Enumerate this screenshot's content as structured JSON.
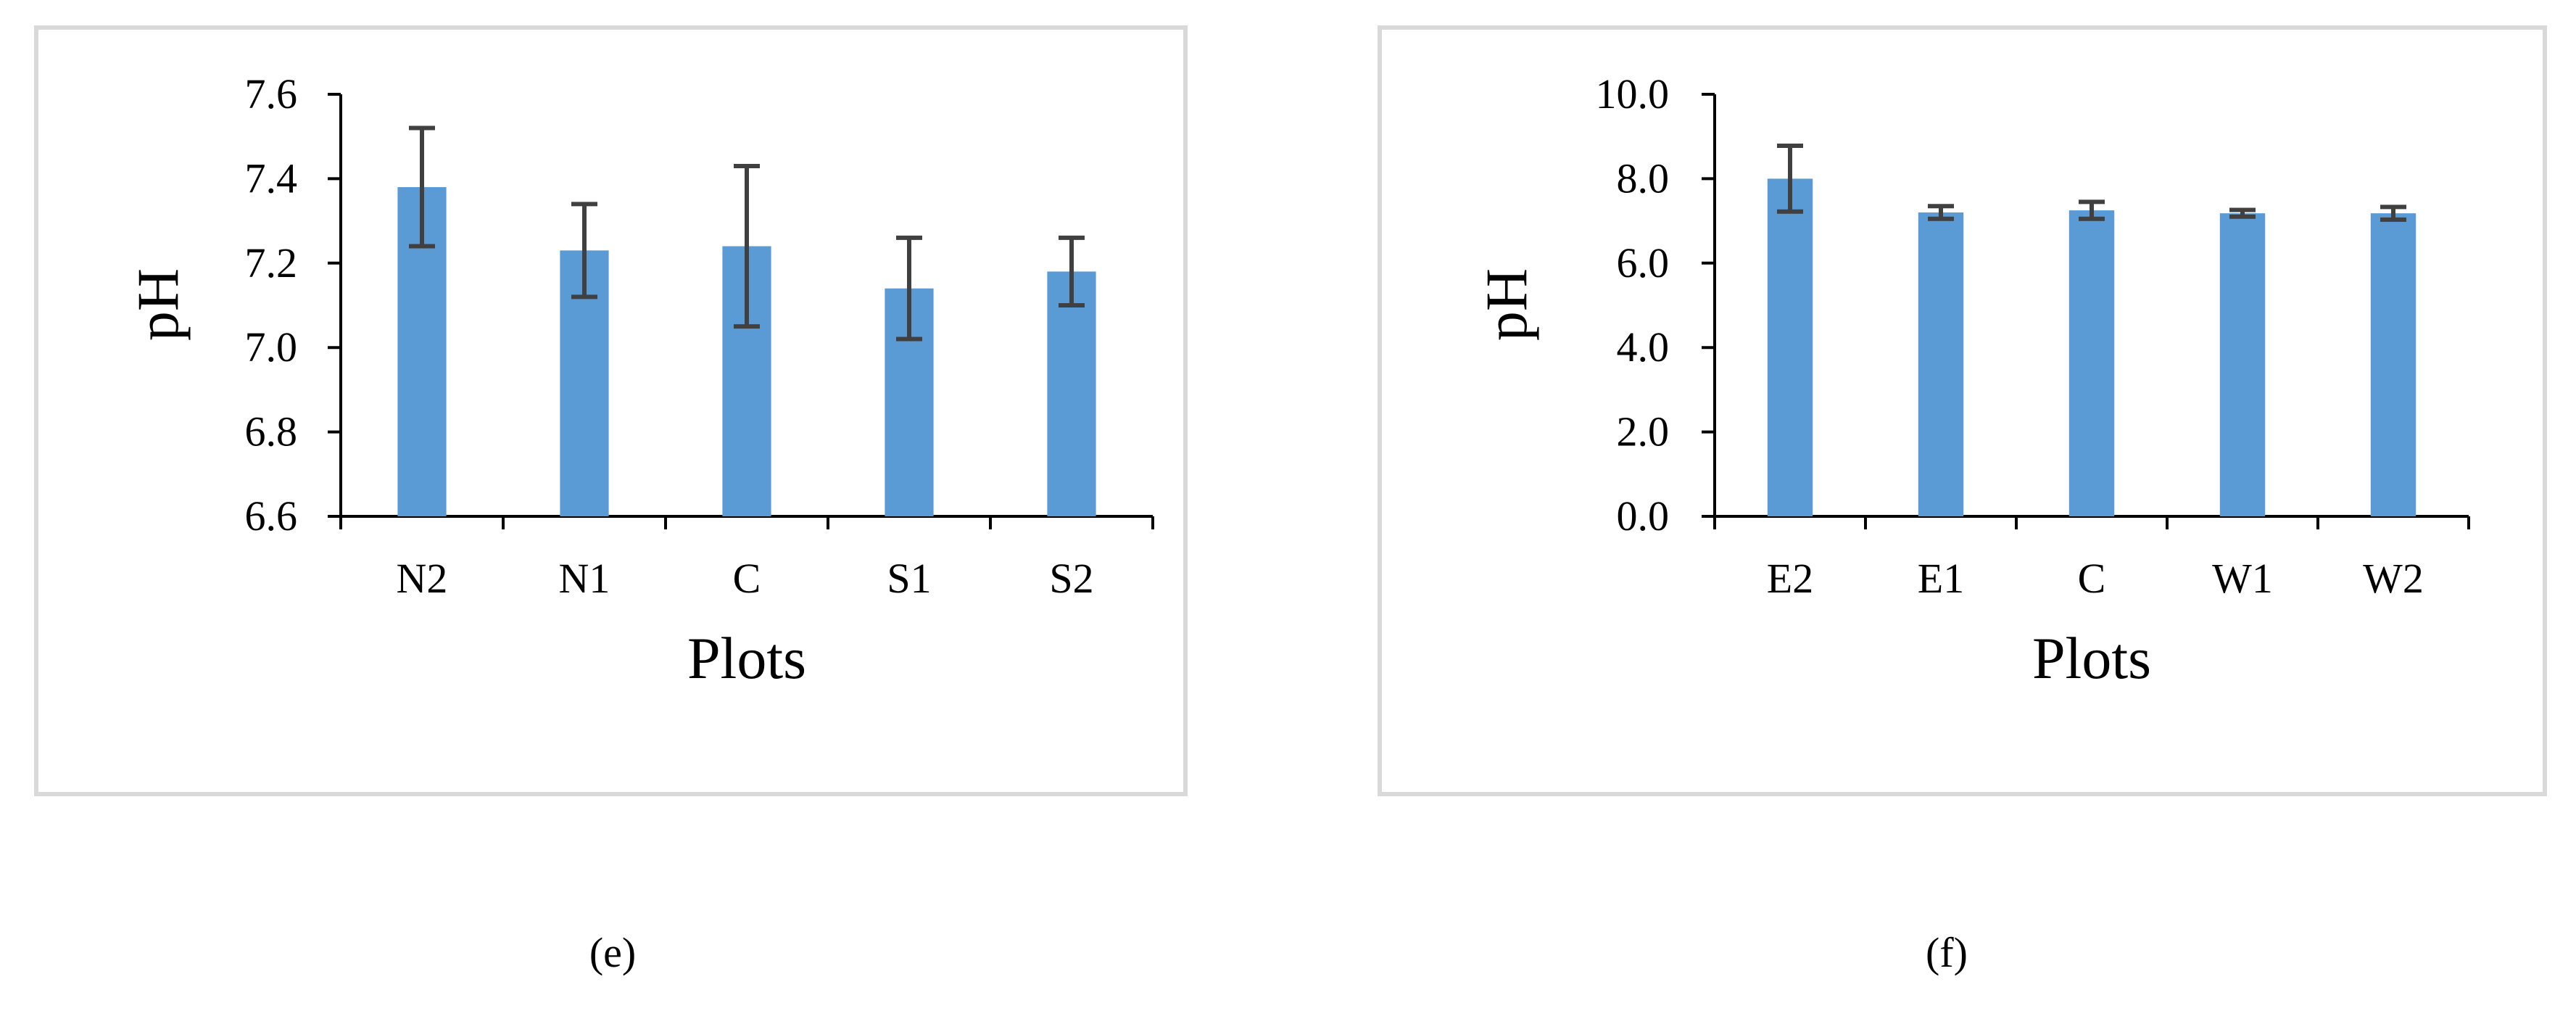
{
  "colors": {
    "bar": "#5b9bd5",
    "error_bar": "#404040",
    "axis": "#000000",
    "frame": "#d9d9d9"
  },
  "captions": [
    "(e)",
    "(f)"
  ],
  "chart_data": [
    {
      "type": "bar",
      "title": "",
      "xlabel": "Plots",
      "ylabel": "pH",
      "categories": [
        "N2",
        "N1",
        "C",
        "S1",
        "S2"
      ],
      "values": [
        7.38,
        7.23,
        7.24,
        7.14,
        7.18
      ],
      "errors": [
        0.14,
        0.11,
        0.19,
        0.12,
        0.08
      ],
      "ylim": [
        6.6,
        7.6
      ],
      "yticks": [
        "6.6",
        "6.8",
        "7.0",
        "7.2",
        "7.4",
        "7.6"
      ],
      "grid": false,
      "legend": "none"
    },
    {
      "type": "bar",
      "title": "",
      "xlabel": "Plots",
      "ylabel": "pH",
      "categories": [
        "E2",
        "E1",
        "C",
        "W1",
        "W2"
      ],
      "values": [
        8.0,
        7.2,
        7.25,
        7.18,
        7.18
      ],
      "errors": [
        0.78,
        0.15,
        0.2,
        0.08,
        0.15
      ],
      "ylim": [
        0,
        10
      ],
      "yticks": [
        "0.0",
        "2.0",
        "4.0",
        "6.0",
        "8.0",
        "10.0"
      ],
      "grid": false,
      "legend": "none"
    }
  ]
}
